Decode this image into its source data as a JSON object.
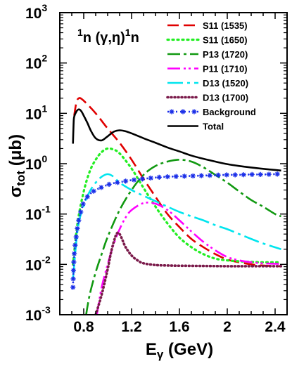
{
  "chart_data": {
    "type": "line",
    "annotation": {
      "sup1": "1",
      "core": "n (γ,η)",
      "sup2": "1",
      "tail": "n"
    },
    "xlabel": {
      "main": "E",
      "sub": "γ",
      "rest": " (GeV)"
    },
    "ylabel": {
      "main": "σ",
      "sub": "tot",
      "rest": " (μb)"
    },
    "x_scale": "linear",
    "y_scale": "log",
    "xlim": [
      0.6,
      2.5
    ],
    "ylim": [
      0.001,
      1000
    ],
    "x_ticks": [
      {
        "value": 0.8,
        "label": "0.8"
      },
      {
        "value": 1.2,
        "label": "1.2"
      },
      {
        "value": 1.6,
        "label": "1.6"
      },
      {
        "value": 2.0,
        "label": "2"
      },
      {
        "value": 2.4,
        "label": "2.4"
      }
    ],
    "y_ticks": [
      {
        "value": 0.001,
        "base": "10",
        "exp": "-3"
      },
      {
        "value": 0.01,
        "base": "10",
        "exp": "-2"
      },
      {
        "value": 0.1,
        "base": "10",
        "exp": "-1"
      },
      {
        "value": 1,
        "base": "10",
        "exp": "0"
      },
      {
        "value": 10,
        "base": "10",
        "exp": "1"
      },
      {
        "value": 100,
        "base": "10",
        "exp": "2"
      },
      {
        "value": 1000,
        "base": "10",
        "exp": "3"
      }
    ],
    "legend_position": "top-right",
    "series": [
      {
        "name": "S11 (1535)",
        "color": "#e00000",
        "dash": "16,7",
        "width": 2.6,
        "marker": "none",
        "x": [
          0.72,
          0.74,
          0.76,
          0.78,
          0.82,
          0.9,
          1.0,
          1.1,
          1.2,
          1.3,
          1.4,
          1.5,
          1.6,
          1.7,
          1.8,
          1.9,
          2.0,
          2.1,
          2.2,
          2.3,
          2.4,
          2.45
        ],
        "y": [
          9,
          17,
          20,
          19.5,
          16,
          10,
          5.0,
          2.6,
          1.2,
          0.5,
          0.22,
          0.1,
          0.055,
          0.032,
          0.022,
          0.016,
          0.0125,
          0.011,
          0.01,
          0.0095,
          0.0092,
          0.0092
        ]
      },
      {
        "name": "S11 (1650)",
        "color": "#22ee22",
        "dash": "2,5",
        "width": 3.2,
        "marker": "none",
        "x": [
          0.71,
          0.75,
          0.8,
          0.85,
          0.9,
          0.95,
          1.0,
          1.05,
          1.1,
          1.2,
          1.3,
          1.4,
          1.5,
          1.6,
          1.7,
          1.8,
          1.9,
          2.0,
          2.1,
          2.2,
          2.3,
          2.45
        ],
        "y": [
          0.01,
          0.07,
          0.28,
          0.7,
          1.2,
          1.7,
          2.0,
          1.9,
          1.6,
          0.8,
          0.33,
          0.14,
          0.065,
          0.034,
          0.022,
          0.016,
          0.013,
          0.012,
          0.0115,
          0.0112,
          0.011,
          0.011
        ]
      },
      {
        "name": "P13 (1720)",
        "color": "#119911",
        "dash": "18,5,4,5",
        "width": 2.6,
        "marker": "none",
        "x": [
          0.82,
          0.85,
          0.9,
          0.95,
          1.0,
          1.1,
          1.2,
          1.3,
          1.4,
          1.5,
          1.6,
          1.7,
          1.8,
          1.9,
          2.0,
          2.1,
          2.2,
          2.3,
          2.4,
          2.45
        ],
        "y": [
          0.001,
          0.0025,
          0.007,
          0.016,
          0.035,
          0.12,
          0.3,
          0.6,
          0.9,
          1.1,
          1.2,
          1.1,
          0.85,
          0.6,
          0.42,
          0.28,
          0.19,
          0.14,
          0.1,
          0.09
        ]
      },
      {
        "name": "P11 (1710)",
        "color": "#ff00ff",
        "dash": "18,5,3,4,3,5",
        "width": 2.6,
        "marker": "none",
        "x": [
          0.91,
          0.95,
          1.0,
          1.05,
          1.1,
          1.15,
          1.2,
          1.3,
          1.4,
          1.5,
          1.6,
          1.7,
          1.8,
          1.9,
          2.0,
          2.1,
          2.2,
          2.3,
          2.45
        ],
        "y": [
          0.001,
          0.0035,
          0.01,
          0.025,
          0.05,
          0.085,
          0.12,
          0.165,
          0.16,
          0.12,
          0.075,
          0.045,
          0.028,
          0.019,
          0.014,
          0.012,
          0.011,
          0.0105,
          0.0102
        ]
      },
      {
        "name": "D13 (1520)",
        "color": "#00e5ee",
        "dash": "22,6,4,6",
        "width": 2.6,
        "marker": "none",
        "x": [
          0.71,
          0.75,
          0.8,
          0.85,
          0.9,
          0.95,
          1.0,
          1.05,
          1.1,
          1.2,
          1.3,
          1.4,
          1.5,
          1.6,
          1.7,
          1.8,
          1.9,
          2.0,
          2.1,
          2.2,
          2.3,
          2.45
        ],
        "y": [
          0.005,
          0.05,
          0.15,
          0.28,
          0.42,
          0.55,
          0.62,
          0.55,
          0.42,
          0.3,
          0.23,
          0.18,
          0.14,
          0.11,
          0.09,
          0.075,
          0.06,
          0.05,
          0.04,
          0.032,
          0.026,
          0.02
        ]
      },
      {
        "name": "D13 (1700)",
        "color": "#7a1a4a",
        "dash": "1,4",
        "width": 3.6,
        "marker": "none",
        "x": [
          0.9,
          0.95,
          1.0,
          1.03,
          1.06,
          1.08,
          1.1,
          1.12,
          1.15,
          1.2,
          1.25,
          1.3,
          1.4,
          1.5,
          1.6,
          1.8,
          2.0,
          2.2,
          2.45
        ],
        "y": [
          0.001,
          0.0025,
          0.008,
          0.018,
          0.033,
          0.042,
          0.04,
          0.032,
          0.022,
          0.015,
          0.012,
          0.0105,
          0.0097,
          0.0095,
          0.0094,
          0.0093,
          0.0092,
          0.0092,
          0.0092
        ]
      },
      {
        "name": "Background",
        "color": "#1a2ee8",
        "dash": "2,4",
        "width": 2.6,
        "marker": "star",
        "x": [
          0.71,
          0.72,
          0.74,
          0.76,
          0.78,
          0.8,
          0.83,
          0.86,
          0.9,
          0.95,
          1.0,
          1.05,
          1.1,
          1.15,
          1.2,
          1.3,
          1.4,
          1.5,
          1.6,
          1.7,
          1.8,
          1.9,
          2.0,
          2.1,
          2.2,
          2.3,
          2.4,
          2.45
        ],
        "y": [
          0.0035,
          0.015,
          0.04,
          0.08,
          0.12,
          0.17,
          0.22,
          0.26,
          0.3,
          0.34,
          0.38,
          0.41,
          0.43,
          0.45,
          0.47,
          0.5,
          0.53,
          0.55,
          0.56,
          0.57,
          0.58,
          0.59,
          0.6,
          0.6,
          0.61,
          0.61,
          0.62,
          0.62
        ]
      },
      {
        "name": "Total",
        "color": "#000000",
        "dash": "",
        "width": 2.6,
        "marker": "none",
        "x": [
          0.71,
          0.715,
          0.72,
          0.74,
          0.76,
          0.78,
          0.8,
          0.83,
          0.86,
          0.9,
          0.95,
          1.0,
          1.05,
          1.1,
          1.15,
          1.2,
          1.3,
          1.4,
          1.5,
          1.6,
          1.7,
          1.8,
          1.9,
          2.0,
          2.1,
          2.2,
          2.3,
          2.4,
          2.45
        ],
        "y": [
          2.5,
          6,
          8.5,
          11,
          12,
          11,
          9,
          6.5,
          4.5,
          3.2,
          2.9,
          3.5,
          4.3,
          4.6,
          4.4,
          4.0,
          3.2,
          2.6,
          2.1,
          1.75,
          1.45,
          1.25,
          1.1,
          0.98,
          0.9,
          0.84,
          0.79,
          0.75,
          0.73
        ]
      }
    ]
  }
}
